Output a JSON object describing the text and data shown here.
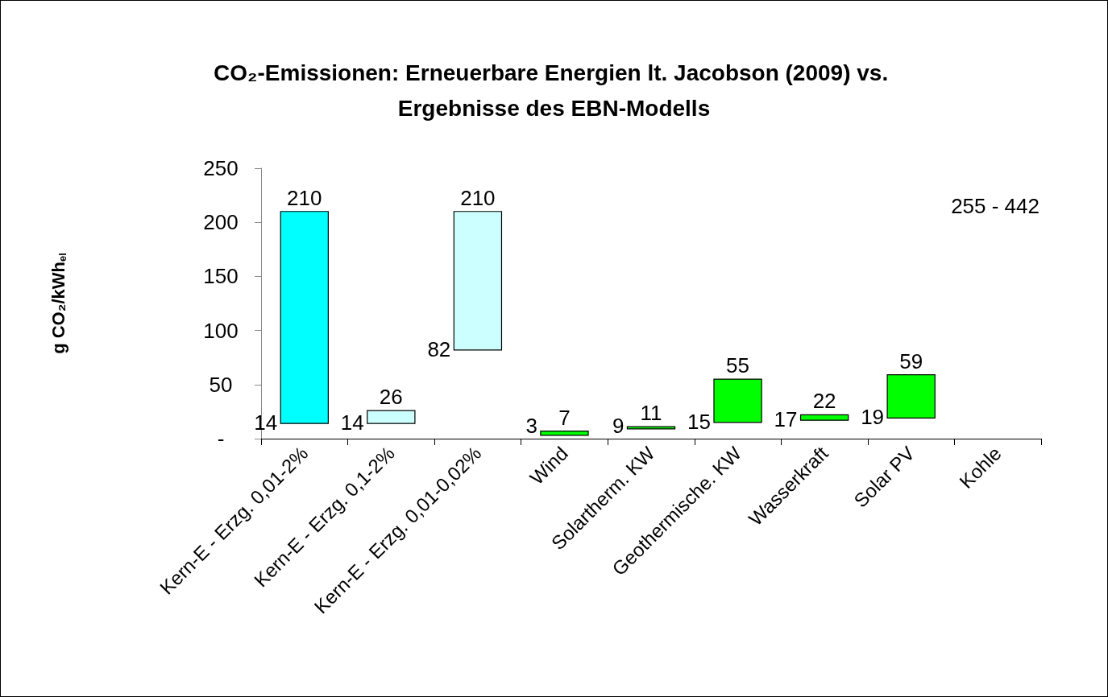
{
  "chart_data": {
    "type": "bar",
    "title": "CO₂-Emissionen: Erneuerbare Energien lt. Jacobson (2009) vs. Ergebnisse des EBN-Modells",
    "ylabel": "g CO₂/kWh$_{el}$",
    "categories": [
      "Kern-E - Erzg. 0,01-2%",
      "Kern-E - Erzg. 0,1-2%",
      "Kern-E - Erzg. 0,01-0,02%",
      "Wind",
      "Solartherm. KW",
      "Geothermische. KW",
      "Wasserkraft",
      "Solar PV",
      "Kohle"
    ],
    "base": [
      14,
      14,
      82,
      3,
      9,
      15,
      17,
      19,
      null
    ],
    "values": [
      196,
      12,
      128,
      4,
      2,
      40,
      5,
      40,
      null
    ],
    "value_labels": [
      "210",
      "26",
      "210",
      "7",
      "11",
      "55",
      "22",
      "59",
      null
    ],
    "colors": [
      "#00ffff",
      "#ccffff",
      "#ccffff",
      "#00ff00",
      "#00ff00",
      "#00ff00",
      "#00ff00",
      "#00ff00",
      null
    ],
    "ylim": [
      0,
      250
    ],
    "yticks": [
      {
        "value": 0,
        "label": "-"
      },
      50,
      100,
      150,
      200,
      250
    ],
    "grid": false,
    "legend": false,
    "annotations": [
      {
        "text": "14",
        "x": "Kern-E - Erzg. 0,01-2%",
        "y": 14
      },
      {
        "text": "14",
        "x": "Kern-E - Erzg. 0,1-2%",
        "y": 14
      },
      {
        "text": "82",
        "x": "Kern-E - Erzg. 0,01-0,02%",
        "y": 82
      },
      {
        "text": "3",
        "x": "Wind",
        "y": 3
      },
      {
        "text": "9",
        "x": "Solartherm. KW",
        "y": 9
      },
      {
        "text": "15",
        "x": "Geothermische. KW",
        "y": 15
      },
      {
        "text": "17",
        "x": "Wasserkraft",
        "y": 17
      },
      {
        "text": "19",
        "x": "Solar PV",
        "y": 19
      },
      "255 - 442"
    ]
  }
}
